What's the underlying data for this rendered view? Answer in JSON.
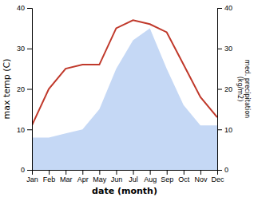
{
  "chart_data": {
    "type": "line",
    "categories": [
      "Jan",
      "Feb",
      "Mar",
      "Apr",
      "May",
      "Jun",
      "Jul",
      "Aug",
      "Sep",
      "Oct",
      "Nov",
      "Dec"
    ],
    "series": [
      {
        "type": "area",
        "color": "#c5d8f5",
        "axis": "y2",
        "values": [
          8,
          8,
          9,
          10,
          15,
          25,
          32,
          35,
          25,
          16,
          11,
          11
        ]
      },
      {
        "type": "line",
        "color": "#c0392b",
        "values": [
          11,
          20,
          25,
          26,
          26,
          35,
          37,
          36,
          34,
          26,
          18,
          13
        ]
      }
    ],
    "xlabel": "date (month)",
    "ylabel": "max temp (C)",
    "y2label": "med. precipitation\n(kg/m2)",
    "ylim": [
      0,
      40
    ],
    "yticks": [
      0,
      10,
      20,
      30,
      40
    ],
    "y2lim": [
      0,
      40
    ],
    "y2ticks": [
      0,
      10,
      20,
      30,
      40
    ],
    "grid": false
  }
}
